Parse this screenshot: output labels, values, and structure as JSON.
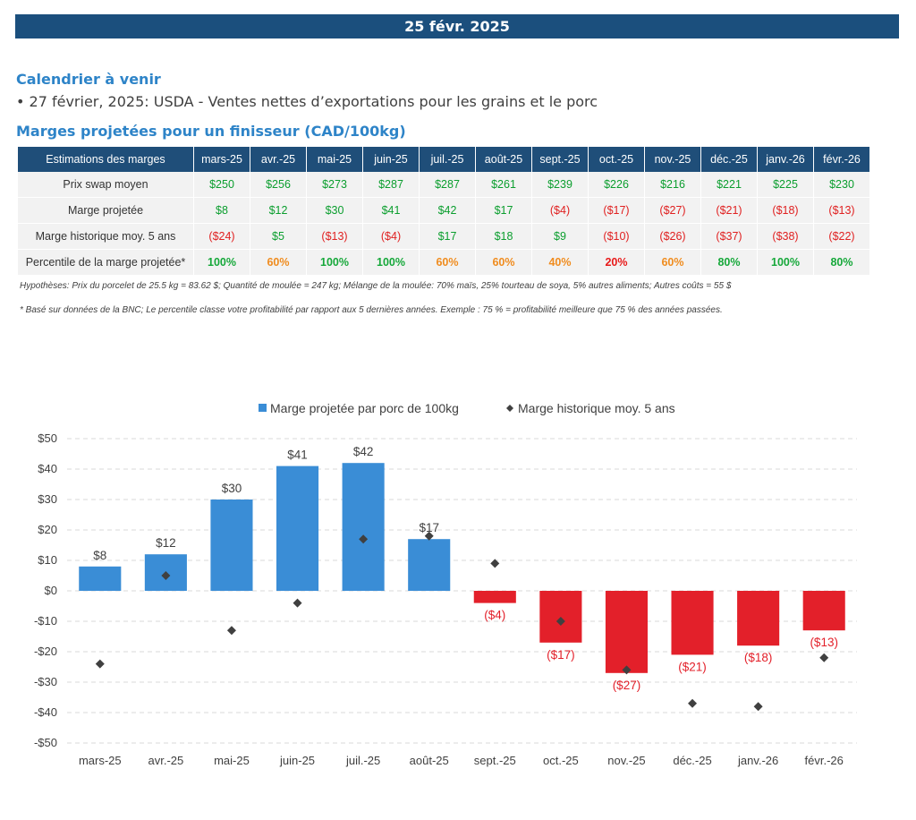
{
  "header": {
    "date": "25 févr. 2025"
  },
  "calendar": {
    "title": "Calendrier à venir",
    "events": [
      "• 27 février, 2025: USDA - Ventes nettes d’exportations pour les grains et le porc"
    ]
  },
  "margins": {
    "title": "Marges projetées pour un finisseur (CAD/100kg)",
    "corner": "Estimations des marges",
    "months": [
      "mars-25",
      "avr.-25",
      "mai-25",
      "juin-25",
      "juil.-25",
      "août-25",
      "sept.-25",
      "oct.-25",
      "nov.-25",
      "déc.-25",
      "janv.-26",
      "févr.-26"
    ],
    "rows": [
      {
        "label": "Prix swap moyen",
        "values": [
          "$250",
          "$256",
          "$273",
          "$287",
          "$287",
          "$261",
          "$239",
          "$226",
          "$216",
          "$221",
          "$225",
          "$230"
        ]
      },
      {
        "label": "Marge projetée",
        "values": [
          "$8",
          "$12",
          "$30",
          "$41",
          "$42",
          "$17",
          "($4)",
          "($17)",
          "($27)",
          "($21)",
          "($18)",
          "($13)"
        ]
      },
      {
        "label": "Marge historique moy. 5 ans",
        "values": [
          "($24)",
          "$5",
          "($13)",
          "($4)",
          "$17",
          "$18",
          "$9",
          "($10)",
          "($26)",
          "($37)",
          "($38)",
          "($22)"
        ]
      },
      {
        "label": "Percentile de la marge projetée*",
        "values": [
          "100%",
          "60%",
          "100%",
          "100%",
          "60%",
          "60%",
          "40%",
          "20%",
          "60%",
          "80%",
          "100%",
          "80%"
        ]
      }
    ],
    "hypotheses": "Hypothèses: Prix du porcelet de 25.5 kg = 83.62 $; Quantité de moulée = 247 kg; Mélange de la moulée: 70% maïs, 25% tourteau de soya, 5% autres aliments; Autres coûts = 55 $",
    "footnote": "* Basé sur données de la BNC; Le percentile classe votre profitabilité par rapport aux 5 dernières années. Exemple : 75 % = profitabilité meilleure que 75 % des années passées."
  },
  "colors": {
    "positive_bar": "#3a8dd6",
    "negative_bar": "#e3202a",
    "marker": "#404040",
    "header_band": "#1b4f7d",
    "table_header": "#1f4e79"
  },
  "chart_data": {
    "type": "bar",
    "categories": [
      "mars-25",
      "avr.-25",
      "mai-25",
      "juin-25",
      "juil.-25",
      "août-25",
      "sept.-25",
      "oct.-25",
      "nov.-25",
      "déc.-25",
      "janv.-26",
      "févr.-26"
    ],
    "series": [
      {
        "name": "Marge projetée par porc de 100kg",
        "type": "bar",
        "values": [
          8,
          12,
          30,
          41,
          42,
          17,
          -4,
          -17,
          -27,
          -21,
          -18,
          -13
        ],
        "labels": [
          "$8",
          "$12",
          "$30",
          "$41",
          "$42",
          "$17",
          "($4)",
          "($17)",
          "($27)",
          "($21)",
          "($18)",
          "($13)"
        ]
      },
      {
        "name": "Marge historique moy. 5 ans",
        "type": "scatter",
        "values": [
          -24,
          5,
          -13,
          -4,
          17,
          18,
          9,
          -10,
          -26,
          -37,
          -38,
          -22
        ]
      }
    ],
    "ylim": [
      -50,
      50
    ],
    "yticks": [
      "-$50",
      "-$40",
      "-$30",
      "-$20",
      "-$10",
      "$0",
      "$10",
      "$20",
      "$30",
      "$40",
      "$50"
    ],
    "grid": true,
    "legend_position": "top"
  }
}
